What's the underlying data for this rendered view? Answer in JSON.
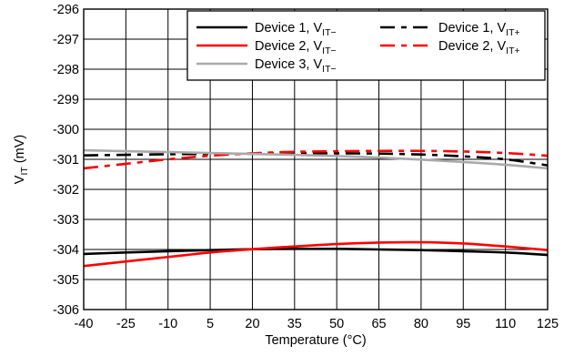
{
  "chart_data": {
    "type": "line",
    "title": "",
    "xlabel": "Temperature (°C)",
    "ylabel": {
      "base": "V",
      "sub": "IT",
      "unit": " (mV)"
    },
    "xlim": [
      -40,
      125
    ],
    "ylim": [
      -306,
      -296
    ],
    "x_ticks": [
      -40,
      -25,
      -10,
      5,
      20,
      35,
      50,
      65,
      80,
      95,
      110,
      125
    ],
    "y_ticks": [
      -296,
      -297,
      -298,
      -299,
      -300,
      -301,
      -302,
      -303,
      -304,
      -305,
      -306
    ],
    "grid": true,
    "legend_placement": "top-right",
    "series": [
      {
        "name": "Device 1, V",
        "name_sub": "IT−",
        "color": "#000000",
        "dash": "solid",
        "x": [
          -40,
          -25,
          -10,
          5,
          20,
          35,
          50,
          65,
          80,
          95,
          110,
          125
        ],
        "y": [
          -304.15,
          -304.1,
          -304.06,
          -304.02,
          -303.99,
          -303.98,
          -303.98,
          -304.0,
          -304.02,
          -304.06,
          -304.1,
          -304.18
        ]
      },
      {
        "name": "Device 1, V",
        "name_sub": "IT+",
        "color": "#000000",
        "dash": "dashed",
        "x": [
          -40,
          -25,
          -10,
          5,
          20,
          35,
          50,
          65,
          80,
          95,
          110,
          125
        ],
        "y": [
          -300.87,
          -300.85,
          -300.83,
          -300.82,
          -300.81,
          -300.8,
          -300.8,
          -300.81,
          -300.84,
          -300.9,
          -301.0,
          -301.2
        ]
      },
      {
        "name": "Device 2, V",
        "name_sub": "IT−",
        "color": "#ff0000",
        "dash": "solid",
        "x": [
          -40,
          -25,
          -10,
          5,
          20,
          35,
          50,
          65,
          80,
          95,
          110,
          125
        ],
        "y": [
          -304.55,
          -304.4,
          -304.25,
          -304.1,
          -303.99,
          -303.9,
          -303.82,
          -303.77,
          -303.76,
          -303.8,
          -303.9,
          -304.02
        ]
      },
      {
        "name": "Device 2, V",
        "name_sub": "IT+",
        "color": "#ff0000",
        "dash": "dashed",
        "x": [
          -40,
          -25,
          -10,
          5,
          20,
          35,
          50,
          65,
          80,
          95,
          110,
          125
        ],
        "y": [
          -301.3,
          -301.15,
          -301.0,
          -300.88,
          -300.8,
          -300.75,
          -300.73,
          -300.72,
          -300.72,
          -300.74,
          -300.79,
          -300.88
        ]
      },
      {
        "name": "Device 3, V",
        "name_sub": "IT−",
        "color": "#aaaaaa",
        "dash": "solid",
        "x": [
          -40,
          -25,
          -10,
          5,
          20,
          35,
          50,
          65,
          80,
          95,
          110,
          125
        ],
        "y": [
          -300.7,
          -300.73,
          -300.76,
          -300.79,
          -300.82,
          -300.85,
          -300.89,
          -300.94,
          -301.01,
          -301.09,
          -301.18,
          -301.3
        ]
      }
    ]
  }
}
